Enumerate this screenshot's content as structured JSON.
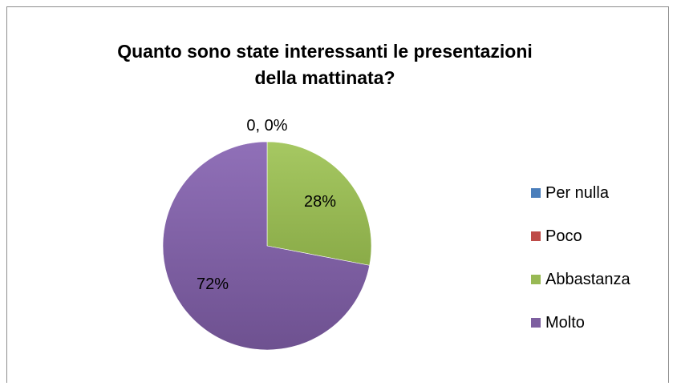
{
  "chart_data": {
    "type": "pie",
    "title_lines": [
      "Quanto sono state interessanti le presentazioni",
      "della mattinata?"
    ],
    "slices": [
      {
        "name": "Per nulla",
        "value": 0,
        "label": "0, 0%",
        "color": "#4a7ebb"
      },
      {
        "name": "Poco",
        "value": 0,
        "label": "",
        "color": "#be4b48"
      },
      {
        "name": "Abbastanza",
        "value": 28,
        "label": "28%",
        "color": "#98b954"
      },
      {
        "name": "Molto",
        "value": 72,
        "label": "72%",
        "color": "#7d5fa0"
      }
    ],
    "legend_position": "right"
  }
}
